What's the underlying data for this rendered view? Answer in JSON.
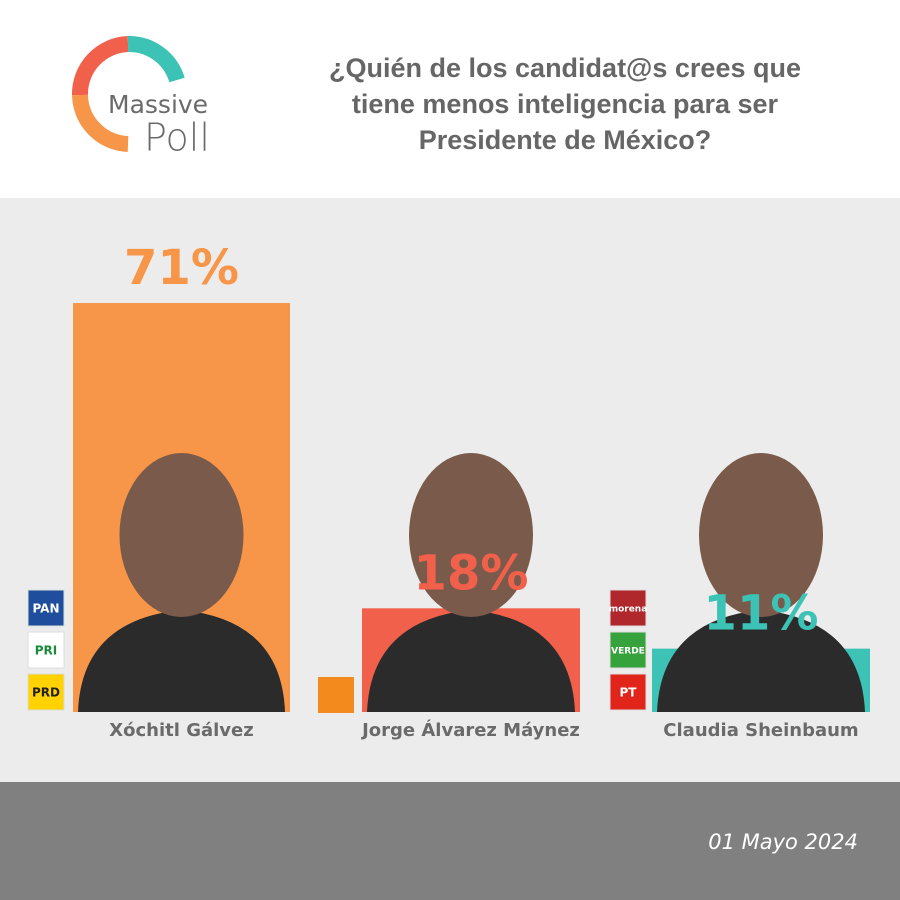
{
  "logo": {
    "line1": "Massive",
    "line2": "Poll"
  },
  "chart_data": {
    "type": "bar",
    "title": [
      "¿Quién de los candidat@s crees que",
      "tiene menos inteligencia para ser",
      "Presidente de México?"
    ],
    "categories": [
      "Xóchitl Gálvez",
      "Jorge Álvarez Máynez",
      "Claudia Sheinbaum"
    ],
    "values": [
      71,
      18,
      11
    ],
    "value_labels": [
      "71%",
      "18%",
      "11%"
    ],
    "colors": [
      "#f79548",
      "#f0604b",
      "#3cc3b6"
    ],
    "parties": [
      [
        "PAN",
        "PRI",
        "PRD"
      ],
      [],
      [
        "morena",
        "VERDE",
        "PT"
      ]
    ]
  },
  "date": "01 Mayo 2024"
}
